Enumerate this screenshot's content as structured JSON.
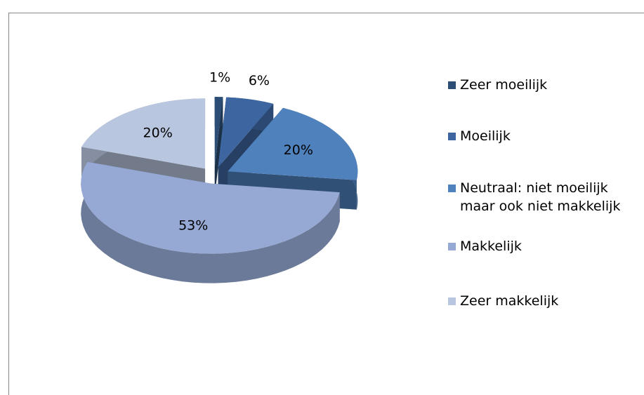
{
  "chart_data": {
    "type": "pie",
    "categories": [
      "Zeer moeilijk",
      "Moeilijk",
      "Neutraal: niet moeilijk maar ook niet makkelijk",
      "Makkelijk",
      "Zeer makkelijk"
    ],
    "values": [
      1,
      6,
      20,
      53,
      20
    ],
    "value_labels": [
      "1%",
      "6%",
      "20%",
      "53%",
      "20%"
    ],
    "colors": [
      "#2c4d75",
      "#3d66a0",
      "#4f81bd",
      "#95a9d4",
      "#b9c6df"
    ]
  }
}
